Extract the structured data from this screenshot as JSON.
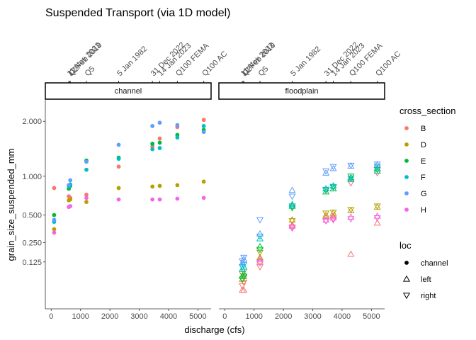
{
  "chart_data": {
    "type": "scatter",
    "title": "Suspended Transport (via 1D model)",
    "xlabel": "discharge (cfs)",
    "ylabel": "grain_size_suspended_mm",
    "y_scale": "sqrt",
    "xlim": [
      -200,
      5450
    ],
    "ylim": [
      0.0,
      2.5
    ],
    "x_ticks": [
      0,
      1000,
      2000,
      3000,
      4000,
      5000
    ],
    "y_ticks": [
      0.125,
      0.25,
      0.5,
      1.0,
      2.0
    ],
    "y_tick_labels": [
      "0.125",
      "0.250",
      "0.500",
      "1.000",
      "2.000"
    ],
    "panels": [
      "channel",
      "floodplain"
    ],
    "events": [
      {
        "label": "11 Nov 2022",
        "x": 600
      },
      {
        "label": "12 Feb 2019",
        "x": 640
      },
      {
        "label": "Q2",
        "x": 650
      },
      {
        "label": "Q5",
        "x": 1200
      },
      {
        "label": "5 Jan 1982",
        "x": 2300
      },
      {
        "label": "31 Dec 2022",
        "x": 3450
      },
      {
        "label": "14 Jan 2023",
        "x": 3700
      },
      {
        "label": "Q100 FEMA",
        "x": 4300
      },
      {
        "label": "Q100 AC",
        "x": 5200
      }
    ],
    "legend_color": {
      "title": "cross_section",
      "items": [
        {
          "name": "B",
          "color": "#F8766D"
        },
        {
          "name": "D",
          "color": "#B79F00"
        },
        {
          "name": "E",
          "color": "#00BA38"
        },
        {
          "name": "F",
          "color": "#00BFC4"
        },
        {
          "name": "G",
          "color": "#619CFF"
        },
        {
          "name": "H",
          "color": "#F564E3"
        }
      ]
    },
    "legend_shape": {
      "title": "loc",
      "items": [
        {
          "name": "channel",
          "shape": "circle"
        },
        {
          "name": "left",
          "shape": "triangle-up"
        },
        {
          "name": "right",
          "shape": "triangle-down"
        }
      ]
    },
    "series": [
      {
        "panel": "channel",
        "cs": "B",
        "loc": "channel",
        "points": [
          [
            100,
            0.83
          ],
          [
            600,
            0.72
          ],
          [
            650,
            0.7
          ],
          [
            1200,
            0.74
          ],
          [
            2300,
            1.15
          ],
          [
            3450,
            1.5
          ],
          [
            3700,
            1.65
          ],
          [
            4300,
            1.88
          ],
          [
            5200,
            2.03
          ]
        ]
      },
      {
        "panel": "channel",
        "cs": "D",
        "loc": "channel",
        "points": [
          [
            100,
            0.36
          ],
          [
            600,
            0.67
          ],
          [
            650,
            0.68
          ],
          [
            1200,
            0.65
          ],
          [
            2300,
            0.83
          ],
          [
            3450,
            0.85
          ],
          [
            3700,
            0.86
          ],
          [
            4300,
            0.87
          ],
          [
            5200,
            0.92
          ]
        ]
      },
      {
        "panel": "channel",
        "cs": "E",
        "loc": "channel",
        "points": [
          [
            100,
            0.5
          ],
          [
            600,
            0.82
          ],
          [
            650,
            0.86
          ],
          [
            1200,
            1.25
          ],
          [
            2300,
            1.3
          ],
          [
            3450,
            1.55
          ],
          [
            3700,
            1.57
          ],
          [
            4300,
            1.72
          ],
          [
            5200,
            1.82
          ]
        ]
      },
      {
        "panel": "channel",
        "cs": "F",
        "loc": "channel",
        "points": [
          [
            100,
            0.43
          ],
          [
            600,
            0.85
          ],
          [
            650,
            0.88
          ],
          [
            1200,
            1.1
          ],
          [
            2300,
            1.28
          ],
          [
            3450,
            1.45
          ],
          [
            3700,
            1.47
          ],
          [
            4300,
            1.67
          ],
          [
            5200,
            1.9
          ]
        ]
      },
      {
        "panel": "channel",
        "cs": "G",
        "loc": "channel",
        "points": [
          [
            100,
            0.45
          ],
          [
            600,
            0.87
          ],
          [
            650,
            0.94
          ],
          [
            1200,
            1.23
          ],
          [
            2300,
            1.53
          ],
          [
            3450,
            1.9
          ],
          [
            3700,
            1.97
          ],
          [
            4300,
            1.92
          ],
          [
            5200,
            1.78
          ]
        ]
      },
      {
        "panel": "channel",
        "cs": "H",
        "loc": "channel",
        "points": [
          [
            100,
            0.33
          ],
          [
            600,
            0.59
          ],
          [
            650,
            0.6
          ],
          [
            1200,
            0.7
          ],
          [
            2300,
            0.68
          ],
          [
            3450,
            0.68
          ],
          [
            3700,
            0.68
          ],
          [
            4300,
            0.69
          ],
          [
            5200,
            0.7
          ]
        ]
      },
      {
        "panel": "floodplain",
        "cs": "B",
        "loc": "left",
        "points": [
          [
            600,
            0.02
          ],
          [
            650,
            0.02
          ],
          [
            1200,
            0.13
          ],
          [
            2300,
            0.4
          ],
          [
            3450,
            0.48
          ],
          [
            3700,
            0.49
          ],
          [
            4300,
            0.17
          ],
          [
            5200,
            0.42
          ]
        ]
      },
      {
        "panel": "floodplain",
        "cs": "B",
        "loc": "right",
        "points": [
          [
            600,
            0.03
          ],
          [
            650,
            0.04
          ],
          [
            1200,
            0.1
          ],
          [
            2300,
            0.38
          ],
          [
            3450,
            0.44
          ],
          [
            3700,
            0.46
          ],
          [
            4300,
            0.9
          ],
          [
            5200,
            1.05
          ]
        ]
      },
      {
        "panel": "floodplain",
        "cs": "D",
        "loc": "left",
        "points": [
          [
            600,
            0.05
          ],
          [
            650,
            0.06
          ],
          [
            1200,
            0.15
          ],
          [
            2300,
            0.45
          ],
          [
            3450,
            0.5
          ],
          [
            3700,
            0.52
          ],
          [
            4300,
            0.55
          ],
          [
            5200,
            0.59
          ]
        ]
      },
      {
        "panel": "floodplain",
        "cs": "D",
        "loc": "right",
        "points": [
          [
            600,
            0.07
          ],
          [
            650,
            0.08
          ],
          [
            1200,
            0.18
          ],
          [
            2300,
            0.44
          ],
          [
            3450,
            0.52
          ],
          [
            3700,
            0.53
          ],
          [
            4300,
            0.56
          ],
          [
            5200,
            0.6
          ]
        ]
      },
      {
        "panel": "floodplain",
        "cs": "E",
        "loc": "left",
        "points": [
          [
            600,
            0.06
          ],
          [
            650,
            0.07
          ],
          [
            1200,
            0.22
          ],
          [
            2300,
            0.6
          ],
          [
            3450,
            0.78
          ],
          [
            3700,
            0.82
          ],
          [
            4300,
            0.98
          ],
          [
            5200,
            1.12
          ]
        ]
      },
      {
        "panel": "floodplain",
        "cs": "E",
        "loc": "right",
        "points": [
          [
            600,
            0.05
          ],
          [
            650,
            0.06
          ],
          [
            1200,
            0.2
          ],
          [
            2300,
            0.58
          ],
          [
            3450,
            0.8
          ],
          [
            3700,
            0.84
          ],
          [
            4300,
            1.0
          ],
          [
            5200,
            1.1
          ]
        ]
      },
      {
        "panel": "floodplain",
        "cs": "F",
        "loc": "left",
        "points": [
          [
            600,
            0.09
          ],
          [
            650,
            0.1
          ],
          [
            1200,
            0.28
          ],
          [
            2300,
            0.62
          ],
          [
            3450,
            0.82
          ],
          [
            3700,
            0.86
          ],
          [
            4300,
            0.95
          ],
          [
            5200,
            1.08
          ]
        ]
      },
      {
        "panel": "floodplain",
        "cs": "F",
        "loc": "right",
        "points": [
          [
            600,
            0.1
          ],
          [
            650,
            0.11
          ],
          [
            1200,
            0.3
          ],
          [
            2300,
            0.6
          ],
          [
            3450,
            0.81
          ],
          [
            3700,
            0.85
          ],
          [
            4300,
            0.97
          ],
          [
            5200,
            1.15
          ]
        ]
      },
      {
        "panel": "floodplain",
        "cs": "G",
        "loc": "left",
        "points": [
          [
            600,
            0.12
          ],
          [
            650,
            0.14
          ],
          [
            1200,
            0.32
          ],
          [
            2300,
            0.8
          ],
          [
            3450,
            1.05
          ],
          [
            3700,
            1.12
          ],
          [
            4300,
            1.16
          ],
          [
            5200,
            1.18
          ]
        ]
      },
      {
        "panel": "floodplain",
        "cs": "G",
        "loc": "right",
        "points": [
          [
            600,
            0.13
          ],
          [
            650,
            0.15
          ],
          [
            1200,
            0.45
          ],
          [
            2300,
            0.72
          ],
          [
            3450,
            1.08
          ],
          [
            3700,
            1.15
          ],
          [
            4300,
            1.17
          ],
          [
            5200,
            1.19
          ]
        ]
      },
      {
        "panel": "floodplain",
        "cs": "H",
        "loc": "left",
        "points": [
          [
            1200,
            0.14
          ],
          [
            2300,
            0.39
          ],
          [
            3450,
            0.45
          ],
          [
            3700,
            0.47
          ],
          [
            4300,
            0.48
          ],
          [
            5200,
            0.49
          ]
        ]
      },
      {
        "panel": "floodplain",
        "cs": "H",
        "loc": "right",
        "points": [
          [
            1200,
            0.12
          ],
          [
            2300,
            0.37
          ],
          [
            3450,
            0.44
          ],
          [
            3700,
            0.45
          ],
          [
            4300,
            0.46
          ],
          [
            5200,
            0.47
          ]
        ]
      }
    ]
  }
}
